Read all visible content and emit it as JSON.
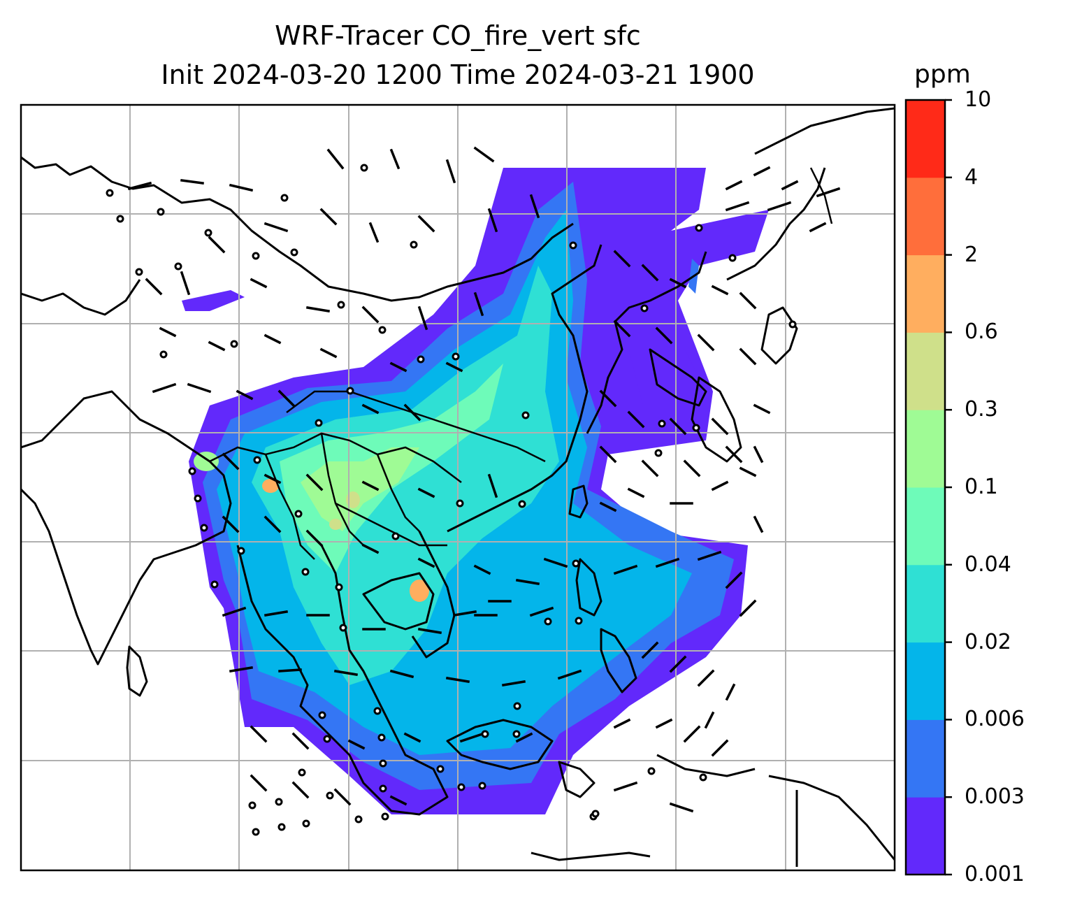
{
  "title": {
    "line1": "WRF-Tracer CO_fire_vert sfc",
    "line2": "Init 2024-03-20 1200 Time 2024-03-21 1900"
  },
  "colorbar": {
    "unit": "ppm",
    "levels": [
      "0.001",
      "0.003",
      "0.006",
      "0.02",
      "0.04",
      "0.1",
      "0.3",
      "0.6",
      "2",
      "4",
      "10"
    ],
    "colors": [
      "#6229fb",
      "#3476f4",
      "#04b5ea",
      "#2fe0d4",
      "#6efbb9",
      "#9ffb95",
      "#cfe08a",
      "#ffae5f",
      "#ff6e3b",
      "#ff2a18"
    ]
  },
  "map": {
    "grid": true,
    "features": [
      "coastlines",
      "country-borders",
      "wind-barbs",
      "calm-circles"
    ],
    "field": "CO_fire_vert"
  }
}
